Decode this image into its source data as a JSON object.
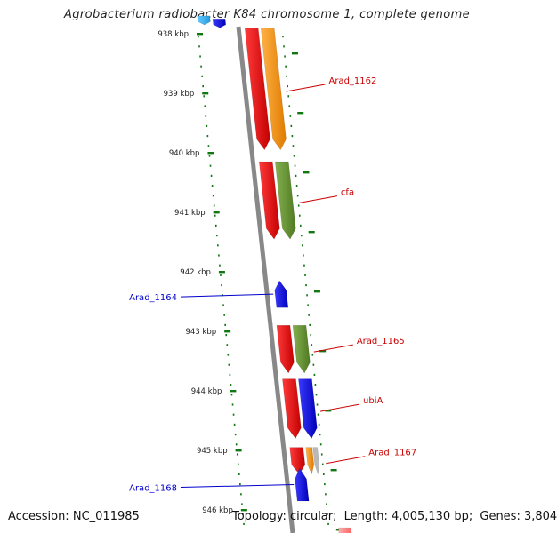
{
  "title": "Agrobacterium radiobacter K84 chromosome 1, complete genome",
  "footer": {
    "accession_label": "Accession:",
    "accession_value": "NC_011985",
    "topology_label": "Topology:",
    "topology_value": "circular",
    "length_label": "Length:",
    "length_value": "4,005,130 bp",
    "genes_label": "Genes:",
    "genes_value": "3,804"
  },
  "colors": {
    "forward_gene": "#ff0000",
    "reverse_gene": "#0000ff",
    "label_forward": "#cc0000",
    "label_reverse": "#0000cc",
    "orange_feature": "#ff9900",
    "olive_feature": "#669933",
    "tick": "#117711",
    "backbone": "#888888"
  },
  "scale": {
    "unit": "kbp",
    "ticks": [
      {
        "kbp": 938,
        "label": "938 kbp"
      },
      {
        "kbp": 939,
        "label": "939 kbp"
      },
      {
        "kbp": 940,
        "label": "940 kbp"
      },
      {
        "kbp": 941,
        "label": "941 kbp"
      },
      {
        "kbp": 942,
        "label": "942 kbp"
      },
      {
        "kbp": 943,
        "label": "943 kbp"
      },
      {
        "kbp": 944,
        "label": "944 kbp"
      },
      {
        "kbp": 945,
        "label": "945 kbp"
      },
      {
        "kbp": 946,
        "label": "946 kbp"
      }
    ]
  },
  "genes": [
    {
      "label": "",
      "strand": "reverse",
      "start_kbp": 937.7,
      "end_kbp": 937.85,
      "type": "cds-light"
    },
    {
      "label": "",
      "strand": "reverse",
      "start_kbp": 937.75,
      "end_kbp": 937.9,
      "type": "cds"
    },
    {
      "label": "Arad_1162",
      "strand": "forward",
      "start_kbp": 937.9,
      "end_kbp": 939.95,
      "type": "cds"
    },
    {
      "label": "",
      "strand": "forward",
      "start_kbp": 937.9,
      "end_kbp": 939.95,
      "type": "orange"
    },
    {
      "label": "cfa",
      "strand": "forward",
      "start_kbp": 940.15,
      "end_kbp": 941.45,
      "type": "cds"
    },
    {
      "label": "",
      "strand": "forward",
      "start_kbp": 940.15,
      "end_kbp": 941.45,
      "type": "olive"
    },
    {
      "label": "Arad_1164",
      "strand": "reverse",
      "start_kbp": 942.15,
      "end_kbp": 942.6,
      "type": "cds"
    },
    {
      "label": "Arad_1165",
      "strand": "forward",
      "start_kbp": 942.9,
      "end_kbp": 943.7,
      "type": "cds"
    },
    {
      "label": "",
      "strand": "forward",
      "start_kbp": 942.9,
      "end_kbp": 943.7,
      "type": "olive"
    },
    {
      "label": "ubiA",
      "strand": "forward",
      "start_kbp": 943.8,
      "end_kbp": 944.8,
      "type": "cds"
    },
    {
      "label": "",
      "strand": "forward",
      "start_kbp": 943.8,
      "end_kbp": 944.8,
      "type": "blue"
    },
    {
      "label": "Arad_1167",
      "strand": "forward",
      "start_kbp": 944.95,
      "end_kbp": 945.4,
      "type": "cds"
    },
    {
      "label": "",
      "strand": "forward",
      "start_kbp": 944.95,
      "end_kbp": 945.4,
      "type": "orange-small"
    },
    {
      "label": "Arad_1168",
      "strand": "reverse",
      "start_kbp": 945.3,
      "end_kbp": 945.85,
      "type": "cds"
    },
    {
      "label": "",
      "strand": "forward",
      "start_kbp": 946.3,
      "end_kbp": 946.5,
      "type": "cds-light"
    }
  ]
}
